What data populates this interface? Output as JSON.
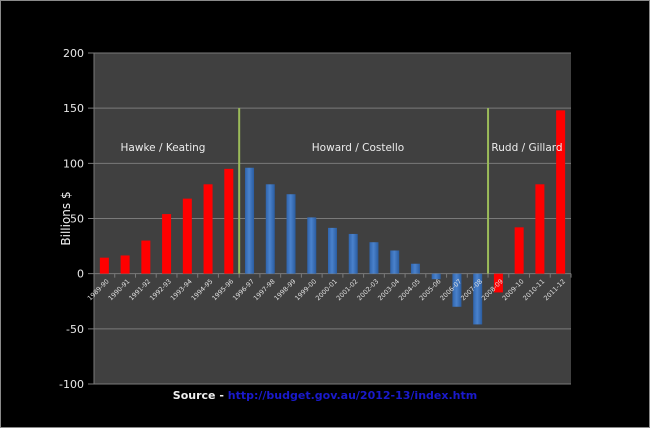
{
  "chart_data": {
    "type": "bar",
    "title": "",
    "xlabel": "",
    "ylabel": "Billions $",
    "ylim": [
      -100,
      200
    ],
    "yticks": [
      200,
      150,
      100,
      50,
      0,
      -50,
      -100
    ],
    "grid": true,
    "categories": [
      "1989-90",
      "1990-91",
      "1991-92",
      "1992-93",
      "1993-94",
      "1994-95",
      "1995-96",
      "1996-97",
      "1997-98",
      "1998-99",
      "1999-00",
      "2000-01",
      "2001-02",
      "2002-03",
      "2003-04",
      "2004-05",
      "2005-06",
      "2006-07",
      "2007-08",
      "2008-09",
      "2009-10",
      "2010-11",
      "2011-12"
    ],
    "values": [
      14.5,
      16.5,
      30,
      54,
      68,
      81,
      95,
      96,
      81,
      72,
      51,
      41.5,
      36,
      28.5,
      21,
      9,
      -5,
      -30,
      -46,
      -17,
      42,
      81,
      148
    ],
    "bar_govt": [
      "labor",
      "labor",
      "labor",
      "labor",
      "labor",
      "labor",
      "labor",
      "coalition",
      "coalition",
      "coalition",
      "coalition",
      "coalition",
      "coalition",
      "coalition",
      "coalition",
      "coalition",
      "coalition",
      "coalition",
      "coalition",
      "labor",
      "labor",
      "labor",
      "labor"
    ],
    "colors": {
      "labor": "#ff0000",
      "coalition": "#4a82cc",
      "divider": "#9bbb59"
    },
    "annotations": [
      {
        "text": "Hawke / Keating",
        "category_from": 0,
        "category_to": 6
      },
      {
        "text": "Howard /  Costello",
        "category_from": 7,
        "category_to": 18
      },
      {
        "text": "Rudd / Gillard",
        "category_from": 19,
        "category_to": 22
      }
    ],
    "dividers_after_category": [
      6,
      18
    ]
  },
  "source": {
    "label": "Source - ",
    "link": "http://budget.gov.au/2012-13/index.htm"
  }
}
